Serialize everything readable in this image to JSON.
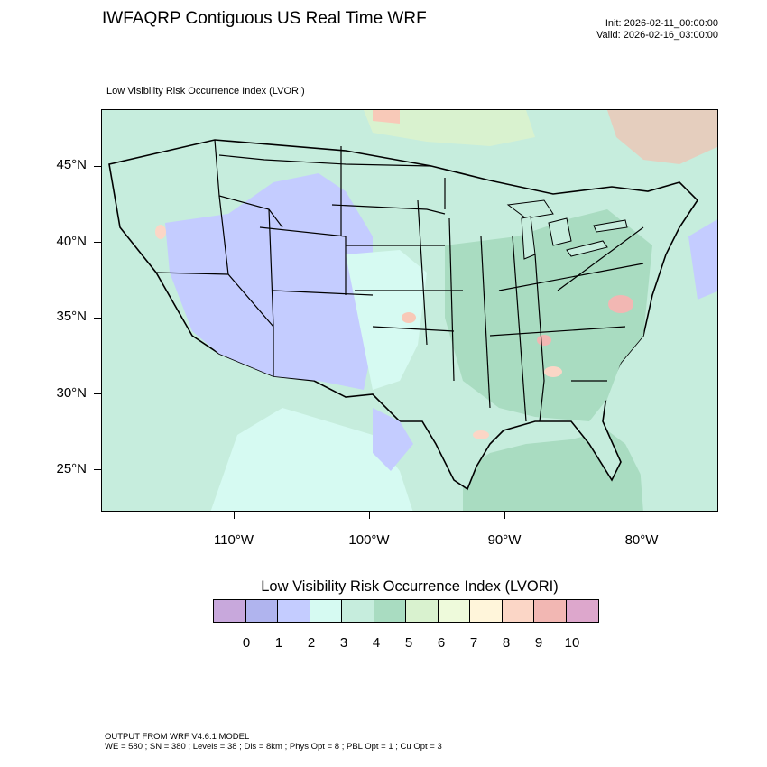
{
  "header": {
    "title": "IWFAQRP Contiguous US Real Time WRF",
    "init": "Init: 2026-02-11_00:00:00",
    "valid": "Valid: 2026-02-16_03:00:00"
  },
  "map": {
    "subtitle": "Low Visibility Risk Occurrence Index   (LVORI)",
    "lat_labels": [
      "45°N",
      "40°N",
      "35°N",
      "30°N",
      "25°N"
    ],
    "lon_labels": [
      "110°W",
      "100°W",
      "90°W",
      "80°W"
    ],
    "extent": {
      "lon": [
        -119.8,
        -74.3
      ],
      "lat": [
        22.1,
        48.7
      ]
    },
    "colors": {
      "ocean": "#c6eddd",
      "west_low": "#c4ccff",
      "mid": "#c6eddd",
      "east": "#a9dcc1",
      "canada": "#c6eddd",
      "high_spots": "#f8c9b8"
    }
  },
  "legend": {
    "title": "Low Visibility Risk Occurrence Index  (LVORI)",
    "labels": [
      "0",
      "1",
      "2",
      "3",
      "4",
      "5",
      "6",
      "7",
      "8",
      "9",
      "10"
    ],
    "colors": [
      "#c8a8dc",
      "#b0b4ee",
      "#c4ccff",
      "#d6faf2",
      "#c6eddd",
      "#a9dcc1",
      "#d9f2cf",
      "#eefadb",
      "#fff5da",
      "#fbd6c6",
      "#f2b7b3",
      "#dda7cc"
    ]
  },
  "footer": {
    "line1": "OUTPUT FROM WRF V4.6.1 MODEL",
    "line2": "WE = 580 ; SN = 380 ; Levels = 38 ; Dis = 8km ; Phys Opt = 8 ; PBL Opt = 1 ; Cu Opt = 3"
  }
}
